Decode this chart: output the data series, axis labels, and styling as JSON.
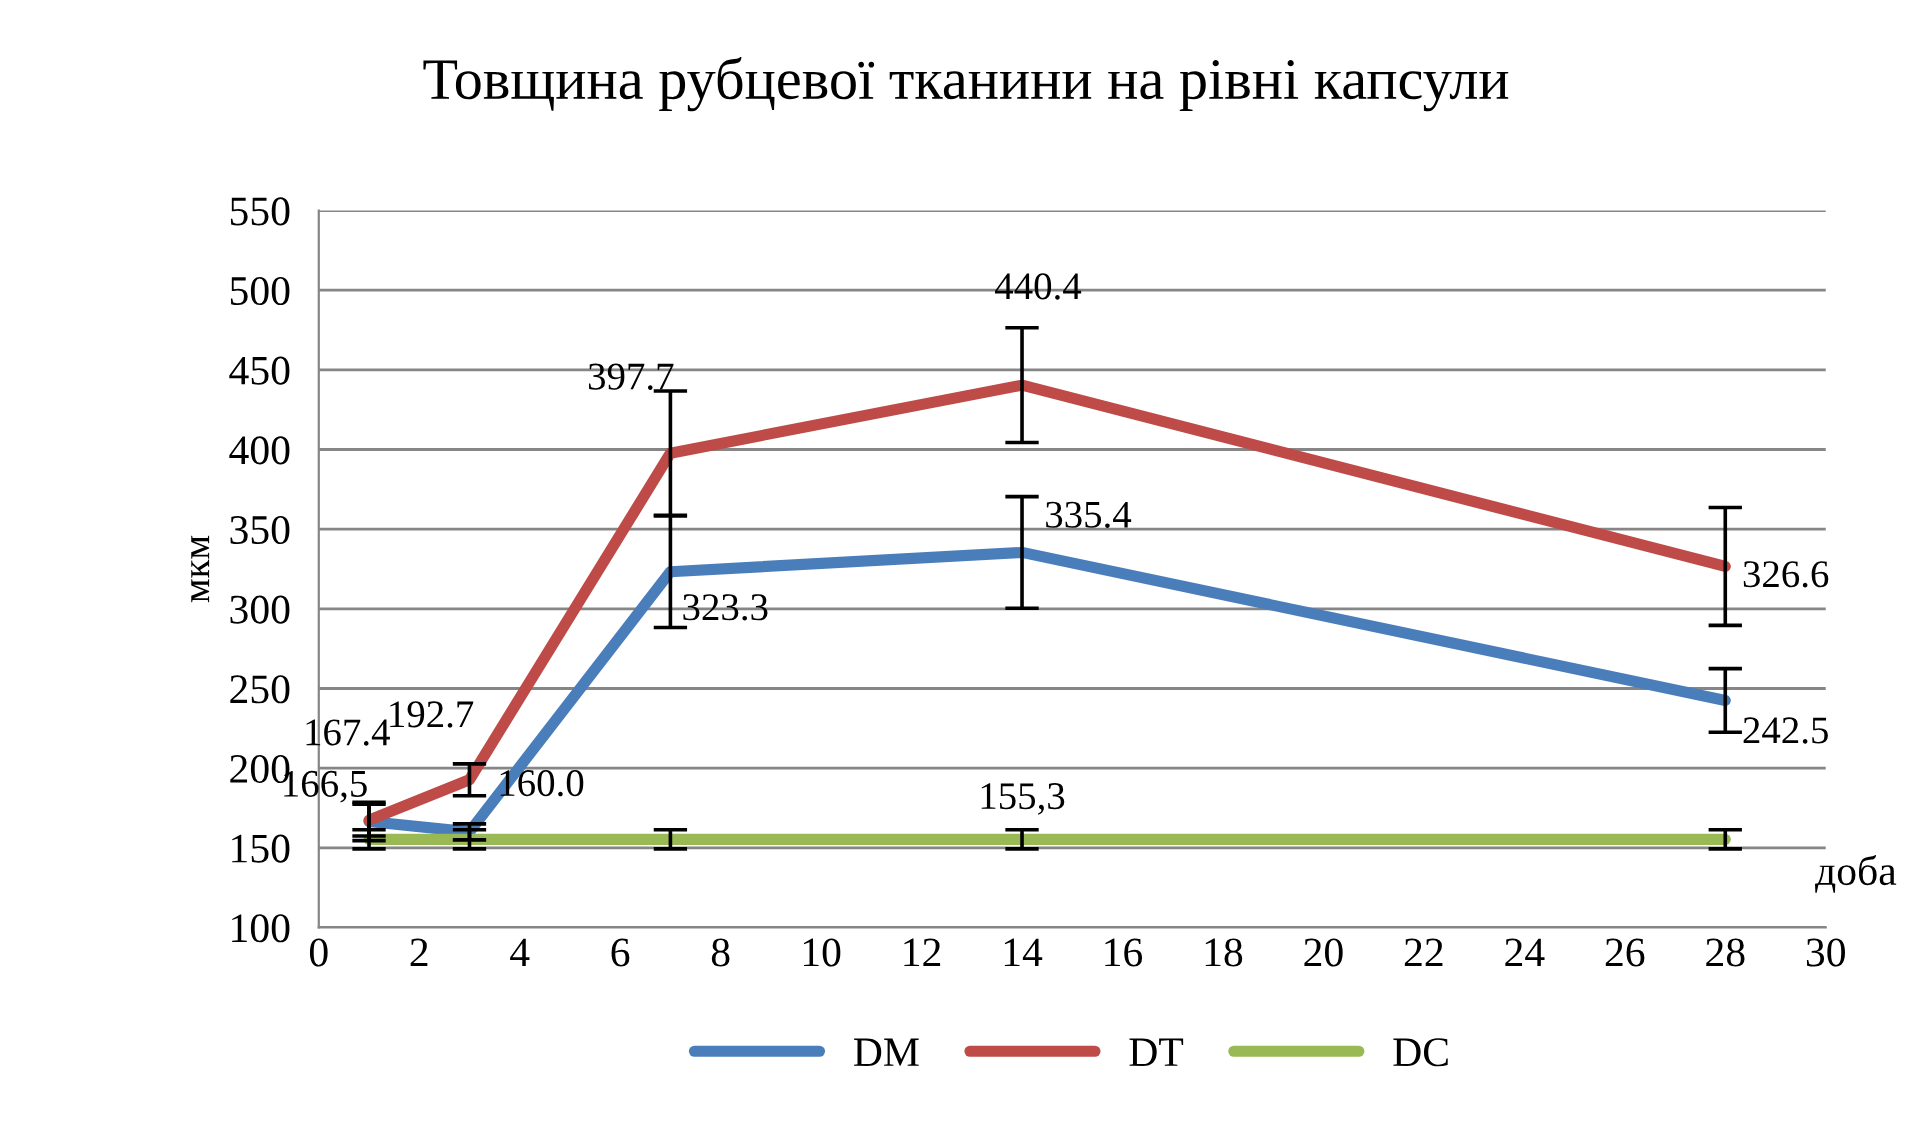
{
  "chart_data": {
    "type": "line",
    "title": "Товщина рубцевої тканини на рівні капсули",
    "xlabel": "доба",
    "ylabel": "мкм",
    "x": [
      1,
      3,
      7,
      14,
      28
    ],
    "series": [
      {
        "name": "DM",
        "color": "#4a7ebb",
        "values": [
          166.5,
          160.0,
          323.3,
          335.4,
          242.5
        ],
        "errors": [
          12,
          5,
          35,
          35,
          20
        ],
        "value_labels": [
          "166,5",
          "160.0",
          "323.3",
          "335.4",
          "242.5"
        ]
      },
      {
        "name": "DT",
        "color": "#be4b48",
        "values": [
          167.4,
          192.7,
          397.7,
          440.4,
          326.6
        ],
        "errors": [
          10,
          10,
          39,
          36,
          37
        ],
        "value_labels": [
          "167.4",
          "192.7",
          "397.7",
          "440.4",
          "326.6"
        ]
      },
      {
        "name": "DC",
        "color": "#98b954",
        "values": [
          155.3,
          155.3,
          155.3,
          155.3,
          155.3
        ],
        "errors": [
          6,
          6,
          6,
          6,
          6
        ],
        "value_labels": [
          null,
          null,
          null,
          "155,3",
          null
        ]
      }
    ],
    "xlim": [
      0,
      30
    ],
    "xticks": [
      0,
      2,
      4,
      6,
      8,
      10,
      12,
      14,
      16,
      18,
      20,
      22,
      24,
      26,
      28,
      30
    ],
    "ylim": [
      100,
      550
    ],
    "yticks": [
      100,
      150,
      200,
      250,
      300,
      350,
      400,
      450,
      500,
      550
    ],
    "grid": "y",
    "legend": "bottom",
    "line_style": "solid",
    "marker": "none"
  }
}
